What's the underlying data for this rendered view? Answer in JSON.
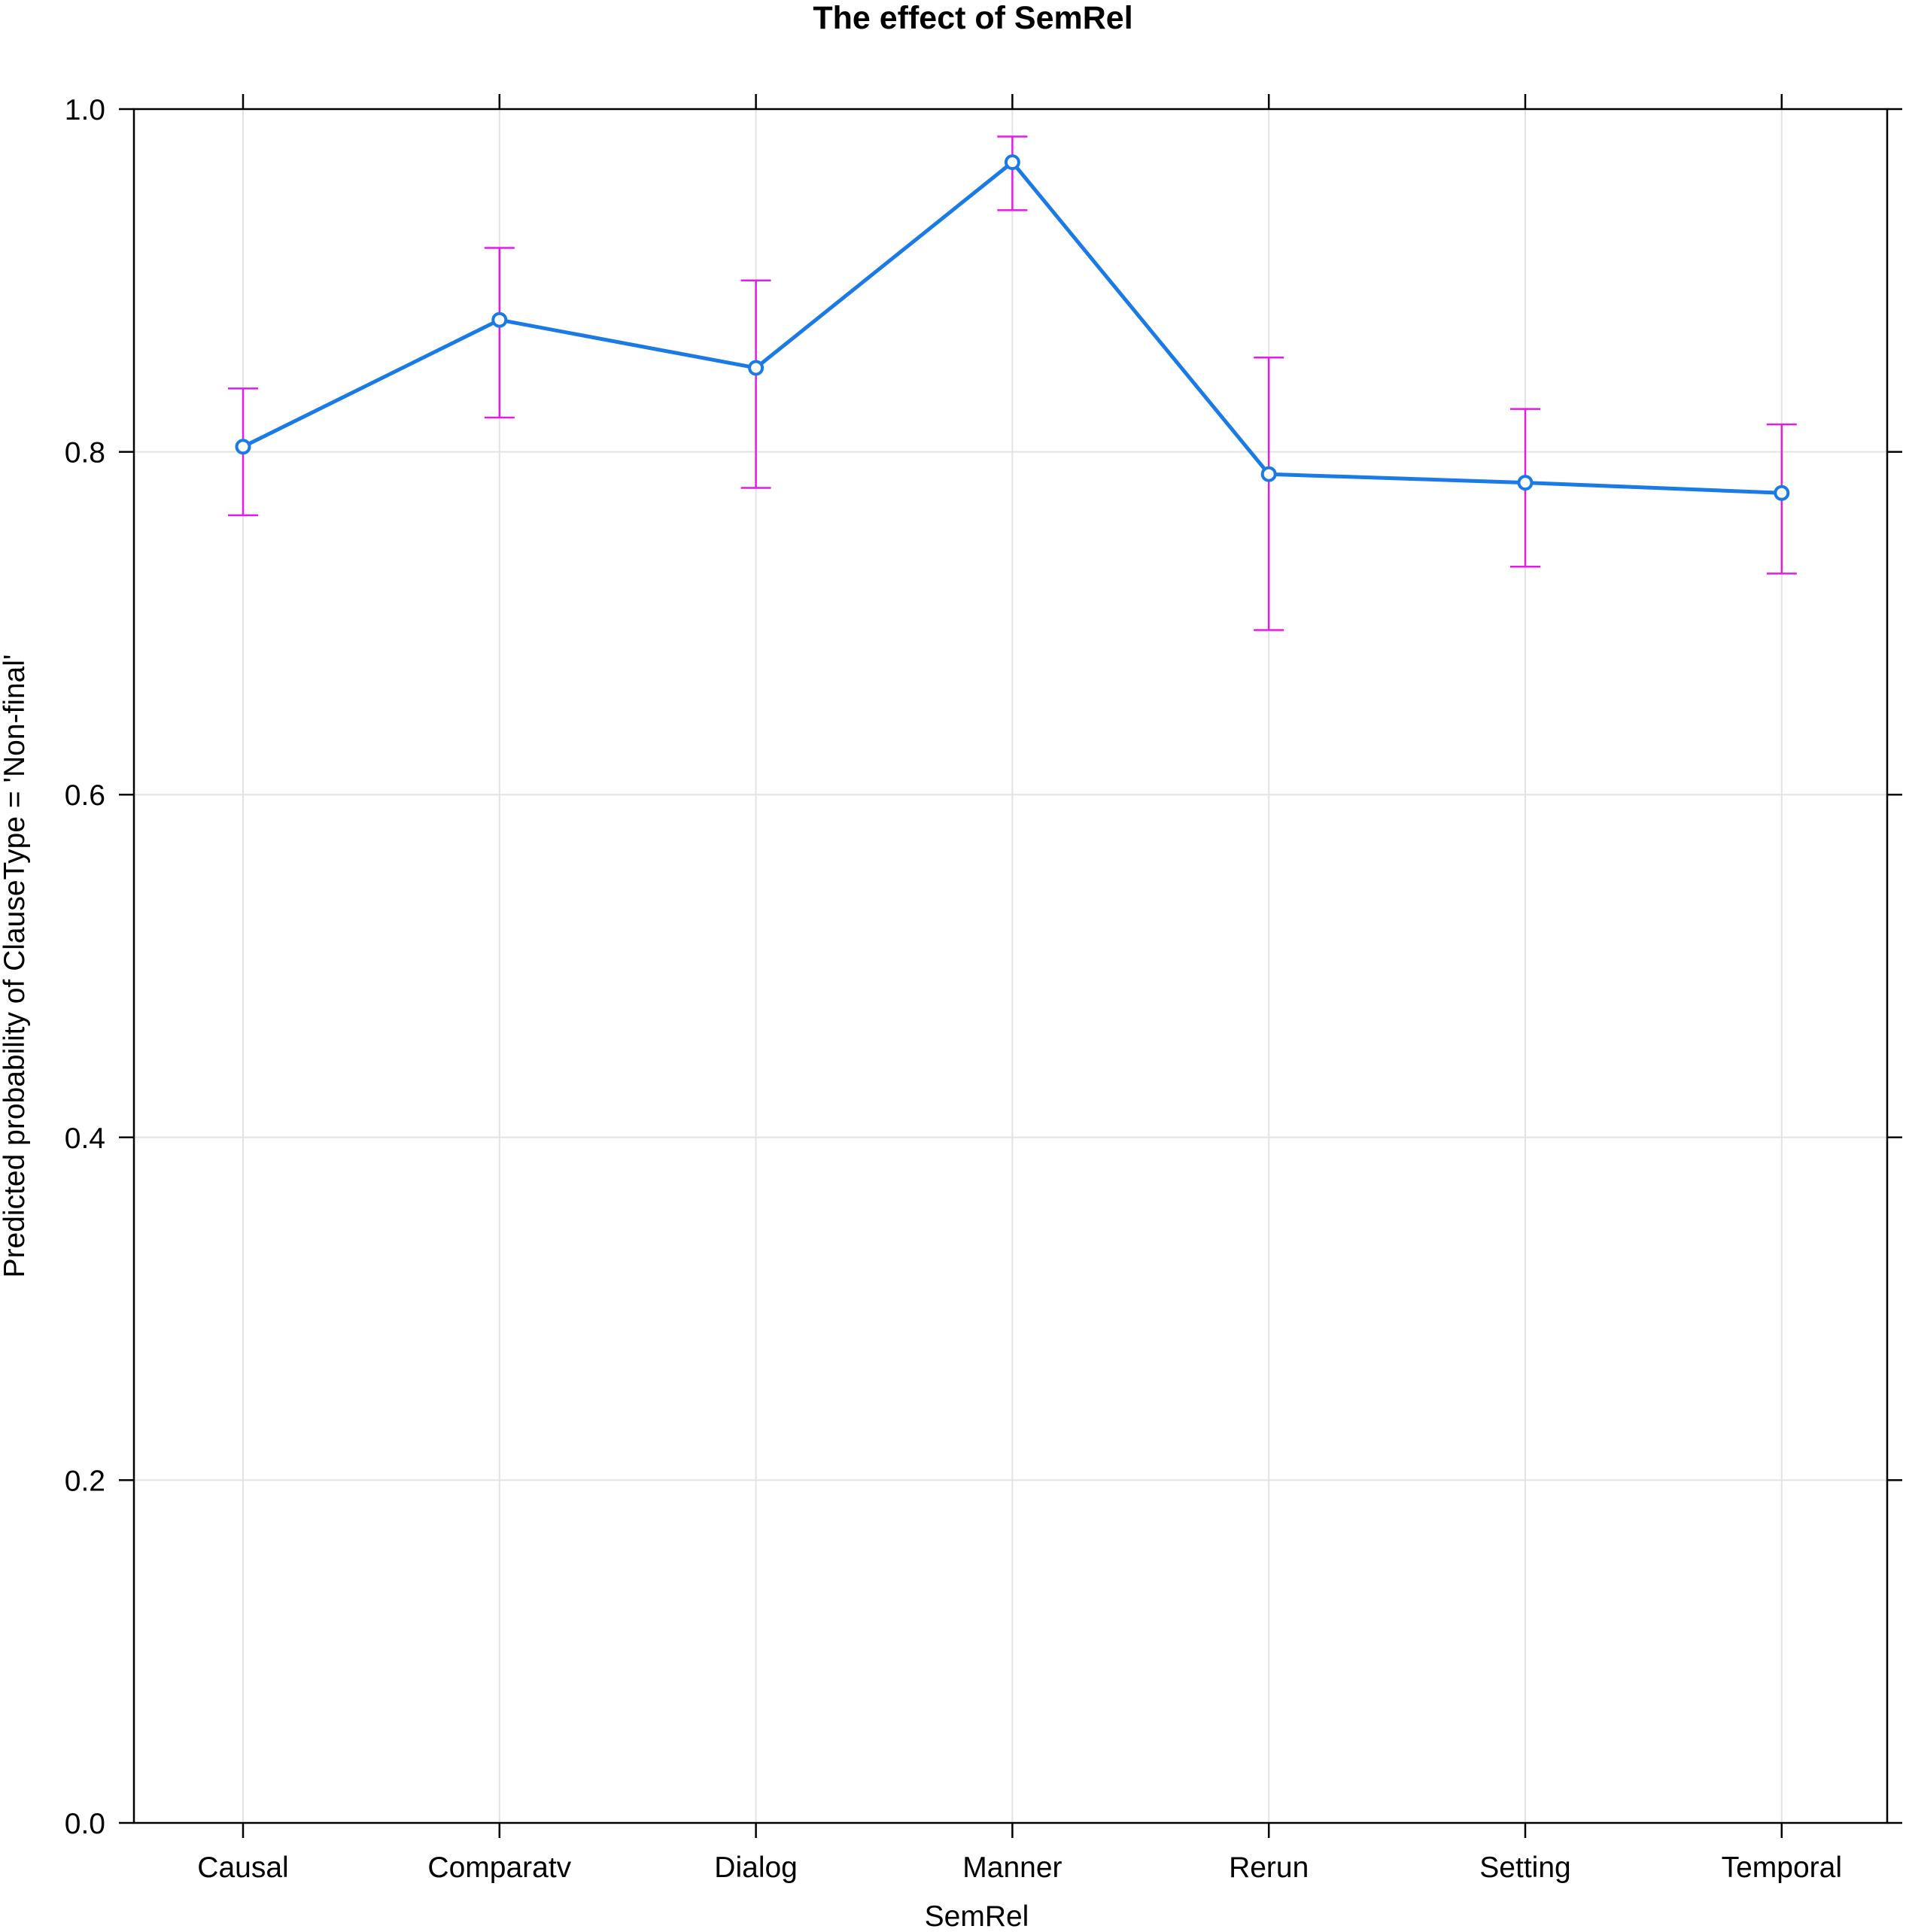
{
  "chart_data": {
    "type": "line",
    "title": "The effect of SemRel",
    "xlabel": "SemRel",
    "ylabel": "Predicted probability of ClauseType = 'Non-final'",
    "categories": [
      "Causal",
      "Comparatv",
      "Dialog",
      "Manner",
      "Rerun",
      "Setting",
      "Temporal"
    ],
    "values": [
      0.803,
      0.877,
      0.849,
      0.969,
      0.787,
      0.782,
      0.776
    ],
    "error_lower": [
      0.763,
      0.82,
      0.779,
      0.941,
      0.696,
      0.733,
      0.729
    ],
    "error_upper": [
      0.837,
      0.919,
      0.9,
      0.984,
      0.855,
      0.825,
      0.816
    ],
    "ylim": [
      0.0,
      1.0
    ],
    "yticks": [
      "0.0",
      "0.2",
      "0.4",
      "0.6",
      "0.8",
      "1.0"
    ],
    "grid": true,
    "colors": {
      "line": "#1a7ae6",
      "error_bars": "#e61ae6",
      "grid": "#e3e3e3",
      "frame": "#000000"
    }
  }
}
